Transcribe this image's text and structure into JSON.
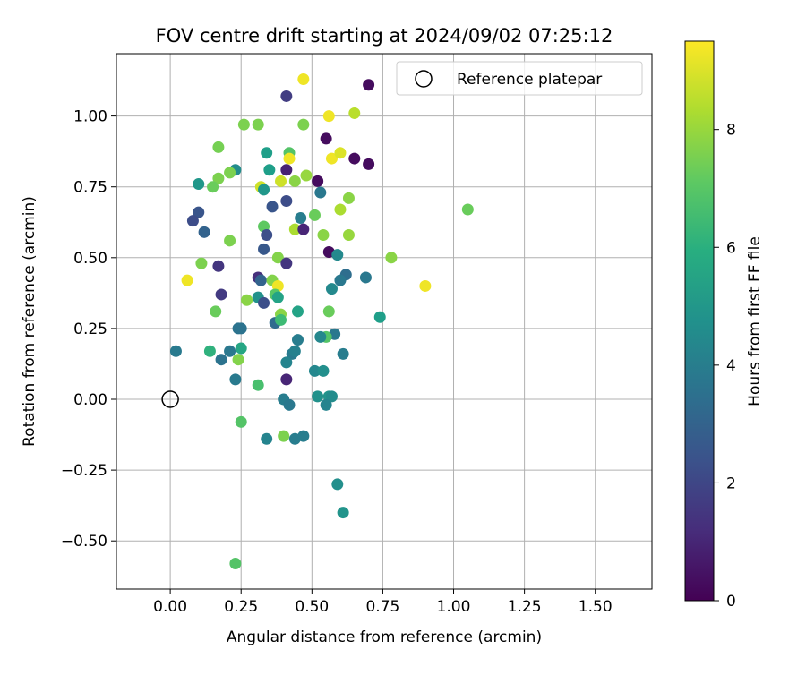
{
  "chart_data": {
    "type": "scatter",
    "title": "FOV centre drift starting at 2024/09/02 07:25:12",
    "xlabel": "Angular distance from reference (arcmin)",
    "ylabel": "Rotation from reference (arcmin)",
    "xlim": [
      -0.19,
      1.7
    ],
    "ylim": [
      -0.67,
      1.22
    ],
    "grid": true,
    "xticks": [
      {
        "v": 0.0,
        "label": "0.00"
      },
      {
        "v": 0.25,
        "label": "0.25"
      },
      {
        "v": 0.5,
        "label": "0.50"
      },
      {
        "v": 0.75,
        "label": "0.75"
      },
      {
        "v": 1.0,
        "label": "1.00"
      },
      {
        "v": 1.25,
        "label": "1.25"
      },
      {
        "v": 1.5,
        "label": "1.50"
      }
    ],
    "yticks": [
      {
        "v": -0.5,
        "label": "−0.50"
      },
      {
        "v": -0.25,
        "label": "−0.25"
      },
      {
        "v": 0.0,
        "label": "0.00"
      },
      {
        "v": 0.25,
        "label": "0.25"
      },
      {
        "v": 0.5,
        "label": "0.50"
      },
      {
        "v": 0.75,
        "label": "0.75"
      },
      {
        "v": 1.0,
        "label": "1.00"
      }
    ],
    "reference_point": {
      "x": 0.0,
      "y": 0.0,
      "label": "Reference platepar"
    },
    "legend": {
      "placement": "top-right",
      "entries": [
        "Reference platepar"
      ]
    },
    "colorbar": {
      "label": "Hours from first FF file",
      "colormap": "viridis",
      "range": [
        0,
        9.5
      ],
      "ticks": [
        {
          "v": 0,
          "label": "0"
        },
        {
          "v": 2,
          "label": "2"
        },
        {
          "v": 4,
          "label": "4"
        },
        {
          "v": 6,
          "label": "6"
        },
        {
          "v": 8,
          "label": "8"
        }
      ]
    },
    "points": [
      {
        "x": 0.47,
        "y": 1.13,
        "h": 9.3
      },
      {
        "x": 0.7,
        "y": 1.11,
        "h": 0.3
      },
      {
        "x": 0.41,
        "y": 1.07,
        "h": 1.7
      },
      {
        "x": 0.56,
        "y": 1.0,
        "h": 9.3
      },
      {
        "x": 0.65,
        "y": 1.01,
        "h": 8.5
      },
      {
        "x": 0.26,
        "y": 0.97,
        "h": 7.6
      },
      {
        "x": 0.31,
        "y": 0.97,
        "h": 7.6
      },
      {
        "x": 0.47,
        "y": 0.97,
        "h": 7.6
      },
      {
        "x": 0.55,
        "y": 0.92,
        "h": 0.3
      },
      {
        "x": 0.17,
        "y": 0.89,
        "h": 7.5
      },
      {
        "x": 0.34,
        "y": 0.87,
        "h": 5.3
      },
      {
        "x": 0.42,
        "y": 0.87,
        "h": 6.9
      },
      {
        "x": 0.57,
        "y": 0.85,
        "h": 9.3
      },
      {
        "x": 0.6,
        "y": 0.87,
        "h": 9.0
      },
      {
        "x": 0.65,
        "y": 0.85,
        "h": 0.3
      },
      {
        "x": 0.7,
        "y": 0.83,
        "h": 0.3
      },
      {
        "x": 0.35,
        "y": 0.81,
        "h": 5.3
      },
      {
        "x": 0.41,
        "y": 0.81,
        "h": 0.9
      },
      {
        "x": 0.42,
        "y": 0.85,
        "h": 9.3
      },
      {
        "x": 0.23,
        "y": 0.81,
        "h": 4.6
      },
      {
        "x": 0.17,
        "y": 0.78,
        "h": 7.6
      },
      {
        "x": 0.21,
        "y": 0.8,
        "h": 7.6
      },
      {
        "x": 0.39,
        "y": 0.77,
        "h": 8.8
      },
      {
        "x": 0.44,
        "y": 0.77,
        "h": 7.8
      },
      {
        "x": 0.48,
        "y": 0.79,
        "h": 8.0
      },
      {
        "x": 0.52,
        "y": 0.77,
        "h": 0.3
      },
      {
        "x": 0.1,
        "y": 0.76,
        "h": 5.0
      },
      {
        "x": 0.15,
        "y": 0.75,
        "h": 7.3
      },
      {
        "x": 0.32,
        "y": 0.75,
        "h": 8.8
      },
      {
        "x": 0.33,
        "y": 0.74,
        "h": 5.0
      },
      {
        "x": 0.53,
        "y": 0.73,
        "h": 3.8
      },
      {
        "x": 0.41,
        "y": 0.7,
        "h": 2.2
      },
      {
        "x": 0.63,
        "y": 0.71,
        "h": 7.8
      },
      {
        "x": 0.6,
        "y": 0.67,
        "h": 8.3
      },
      {
        "x": 1.05,
        "y": 0.67,
        "h": 7.3
      },
      {
        "x": 0.1,
        "y": 0.66,
        "h": 2.5
      },
      {
        "x": 0.36,
        "y": 0.68,
        "h": 2.5
      },
      {
        "x": 0.08,
        "y": 0.63,
        "h": 2.2
      },
      {
        "x": 0.46,
        "y": 0.64,
        "h": 4.0
      },
      {
        "x": 0.51,
        "y": 0.65,
        "h": 7.3
      },
      {
        "x": 0.33,
        "y": 0.61,
        "h": 7.1
      },
      {
        "x": 0.12,
        "y": 0.59,
        "h": 3.0
      },
      {
        "x": 0.44,
        "y": 0.6,
        "h": 8.3
      },
      {
        "x": 0.47,
        "y": 0.6,
        "h": 1.0
      },
      {
        "x": 0.34,
        "y": 0.58,
        "h": 2.3
      },
      {
        "x": 0.54,
        "y": 0.58,
        "h": 7.8
      },
      {
        "x": 0.21,
        "y": 0.56,
        "h": 7.6
      },
      {
        "x": 0.63,
        "y": 0.58,
        "h": 8.0
      },
      {
        "x": 0.33,
        "y": 0.53,
        "h": 2.6
      },
      {
        "x": 0.56,
        "y": 0.52,
        "h": 0.3
      },
      {
        "x": 0.38,
        "y": 0.5,
        "h": 7.7
      },
      {
        "x": 0.41,
        "y": 0.48,
        "h": 1.5
      },
      {
        "x": 0.59,
        "y": 0.51,
        "h": 4.5
      },
      {
        "x": 0.78,
        "y": 0.5,
        "h": 7.8
      },
      {
        "x": 0.11,
        "y": 0.48,
        "h": 7.6
      },
      {
        "x": 0.17,
        "y": 0.47,
        "h": 1.5
      },
      {
        "x": 0.62,
        "y": 0.44,
        "h": 3.4
      },
      {
        "x": 0.31,
        "y": 0.43,
        "h": 1.3
      },
      {
        "x": 0.32,
        "y": 0.42,
        "h": 3.0
      },
      {
        "x": 0.06,
        "y": 0.42,
        "h": 9.3
      },
      {
        "x": 0.36,
        "y": 0.42,
        "h": 7.7
      },
      {
        "x": 0.6,
        "y": 0.42,
        "h": 3.8
      },
      {
        "x": 0.69,
        "y": 0.43,
        "h": 3.8
      },
      {
        "x": 0.38,
        "y": 0.4,
        "h": 9.3
      },
      {
        "x": 0.9,
        "y": 0.4,
        "h": 9.3
      },
      {
        "x": 0.57,
        "y": 0.39,
        "h": 4.5
      },
      {
        "x": 0.18,
        "y": 0.37,
        "h": 1.6
      },
      {
        "x": 0.31,
        "y": 0.36,
        "h": 4.8
      },
      {
        "x": 0.27,
        "y": 0.35,
        "h": 7.8
      },
      {
        "x": 0.33,
        "y": 0.34,
        "h": 2.3
      },
      {
        "x": 0.37,
        "y": 0.37,
        "h": 7.0
      },
      {
        "x": 0.38,
        "y": 0.36,
        "h": 5.5
      },
      {
        "x": 0.16,
        "y": 0.31,
        "h": 7.3
      },
      {
        "x": 0.39,
        "y": 0.3,
        "h": 7.8
      },
      {
        "x": 0.45,
        "y": 0.31,
        "h": 5.5
      },
      {
        "x": 0.56,
        "y": 0.31,
        "h": 7.3
      },
      {
        "x": 0.74,
        "y": 0.29,
        "h": 5.3
      },
      {
        "x": 0.37,
        "y": 0.27,
        "h": 3.3
      },
      {
        "x": 0.39,
        "y": 0.28,
        "h": 6.5
      },
      {
        "x": 0.24,
        "y": 0.25,
        "h": 3.6
      },
      {
        "x": 0.25,
        "y": 0.25,
        "h": 3.6
      },
      {
        "x": 0.58,
        "y": 0.23,
        "h": 3.8
      },
      {
        "x": 0.55,
        "y": 0.22,
        "h": 6.9
      },
      {
        "x": 0.53,
        "y": 0.22,
        "h": 4.4
      },
      {
        "x": 0.45,
        "y": 0.21,
        "h": 4.0
      },
      {
        "x": 0.25,
        "y": 0.18,
        "h": 5.6
      },
      {
        "x": 0.14,
        "y": 0.17,
        "h": 6.1
      },
      {
        "x": 0.21,
        "y": 0.17,
        "h": 3.8
      },
      {
        "x": 0.02,
        "y": 0.17,
        "h": 3.9
      },
      {
        "x": 0.43,
        "y": 0.16,
        "h": 3.9
      },
      {
        "x": 0.44,
        "y": 0.17,
        "h": 4.2
      },
      {
        "x": 0.61,
        "y": 0.16,
        "h": 4.0
      },
      {
        "x": 0.24,
        "y": 0.14,
        "h": 7.7
      },
      {
        "x": 0.18,
        "y": 0.14,
        "h": 3.6
      },
      {
        "x": 0.41,
        "y": 0.13,
        "h": 4.3
      },
      {
        "x": 0.51,
        "y": 0.1,
        "h": 4.4
      },
      {
        "x": 0.54,
        "y": 0.1,
        "h": 4.7
      },
      {
        "x": 0.23,
        "y": 0.07,
        "h": 3.9
      },
      {
        "x": 0.41,
        "y": 0.07,
        "h": 1.0
      },
      {
        "x": 0.31,
        "y": 0.05,
        "h": 6.7
      },
      {
        "x": 0.52,
        "y": 0.01,
        "h": 4.8
      },
      {
        "x": 0.56,
        "y": 0.01,
        "h": 4.9
      },
      {
        "x": 0.57,
        "y": 0.01,
        "h": 4.6
      },
      {
        "x": 0.4,
        "y": 0.0,
        "h": 4.0
      },
      {
        "x": 0.42,
        "y": -0.02,
        "h": 3.8
      },
      {
        "x": 0.55,
        "y": -0.02,
        "h": 4.3
      },
      {
        "x": 0.25,
        "y": -0.08,
        "h": 6.9
      },
      {
        "x": 0.34,
        "y": -0.14,
        "h": 4.3
      },
      {
        "x": 0.4,
        "y": -0.13,
        "h": 7.6
      },
      {
        "x": 0.44,
        "y": -0.14,
        "h": 4.0
      },
      {
        "x": 0.47,
        "y": -0.13,
        "h": 4.0
      },
      {
        "x": 0.59,
        "y": -0.3,
        "h": 4.7
      },
      {
        "x": 0.61,
        "y": -0.4,
        "h": 4.9
      },
      {
        "x": 0.23,
        "y": -0.58,
        "h": 6.9
      }
    ]
  }
}
